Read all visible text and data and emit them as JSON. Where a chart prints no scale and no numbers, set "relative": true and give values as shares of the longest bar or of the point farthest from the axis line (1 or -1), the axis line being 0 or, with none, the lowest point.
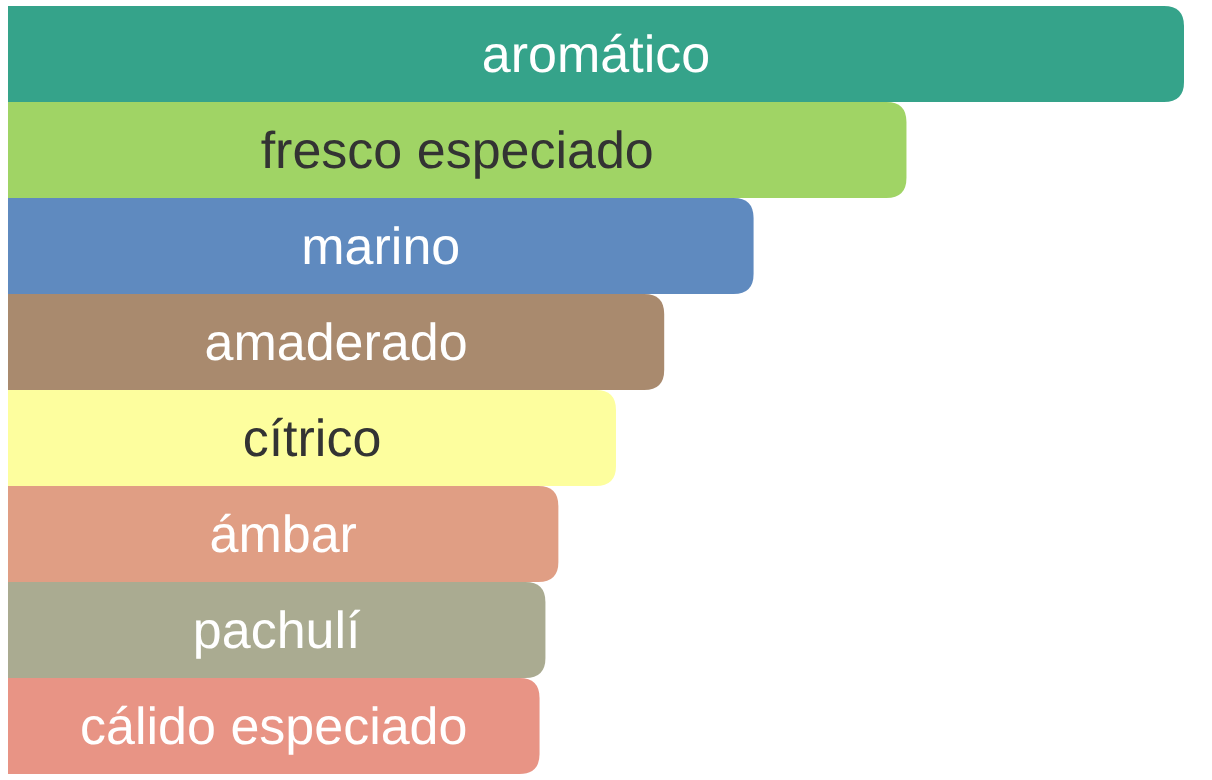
{
  "chart_data": {
    "type": "bar",
    "orientation": "horizontal",
    "relative": true,
    "categories": [
      "aromático",
      "fresco especiado",
      "marino",
      "amaderado",
      "cítrico",
      "ámbar",
      "pachulí",
      "cálido especiado"
    ],
    "values": [
      1,
      0.764,
      0.634,
      0.558,
      0.517,
      0.468,
      0.457,
      0.452
    ],
    "colors": [
      "#35a38a",
      "#a0d465",
      "#5f8abf",
      "#a98a6e",
      "#fdfe9e",
      "#e09e84",
      "#aaab91",
      "#e89485"
    ]
  }
}
